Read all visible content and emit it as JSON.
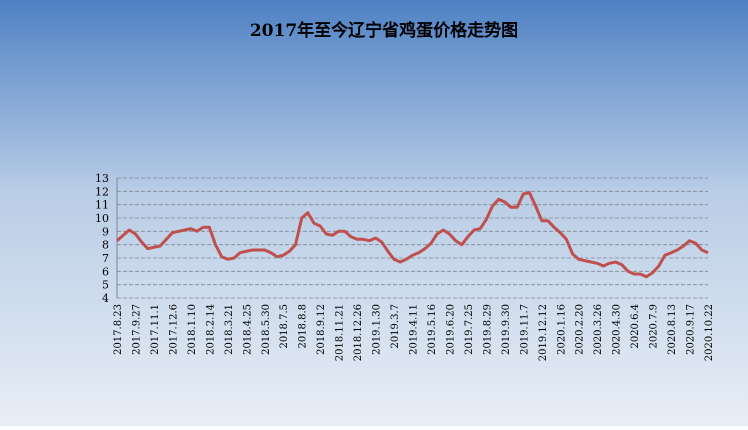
{
  "chart_data": {
    "type": "line",
    "title": "2017年至今辽宁省鸡蛋价格走势图",
    "categories": [
      "2017.8.23",
      null,
      null,
      "2017.9.27",
      null,
      null,
      "2017.11.1",
      null,
      null,
      "2017.12.6",
      null,
      null,
      "2018.1.10",
      null,
      null,
      "2018.2.14",
      null,
      null,
      "2018.3.21",
      null,
      null,
      "2018.4.25",
      null,
      null,
      "2018.5.30",
      null,
      null,
      "2018.7.5",
      null,
      null,
      "2018.8.8",
      null,
      null,
      "2018.9.12",
      null,
      null,
      "2018.11.21",
      null,
      null,
      "2018.12.26",
      null,
      null,
      "2019.1.30",
      null,
      null,
      "2019.3.7",
      null,
      null,
      "2019.4.11",
      null,
      null,
      "2019.5.16",
      null,
      null,
      "2019.6.20",
      null,
      null,
      "2019.7.25",
      null,
      null,
      "2019.8.29",
      null,
      null,
      "2019.9.30",
      null,
      null,
      "2019.11.7",
      null,
      null,
      "2019.12.12",
      null,
      null,
      "2020.1.16",
      null,
      null,
      "2020.2.20",
      null,
      null,
      "2020.3.26",
      null,
      null,
      "2020.4.30",
      null,
      null,
      "2020.6.4",
      null,
      null,
      "2020.7.9",
      null,
      null,
      "2020.8.13",
      null,
      null,
      "2020.9.17",
      null,
      null,
      "2020.10.22"
    ],
    "values": [
      8.3,
      8.7,
      9.1,
      8.8,
      8.2,
      7.7,
      7.8,
      7.9,
      8.4,
      8.9,
      9.0,
      9.1,
      9.2,
      9.0,
      9.3,
      9.3,
      8.0,
      7.1,
      6.9,
      7.0,
      7.4,
      7.5,
      7.6,
      7.6,
      7.6,
      7.4,
      7.1,
      7.2,
      7.5,
      8.0,
      10.0,
      10.4,
      9.6,
      9.4,
      8.8,
      8.7,
      9.0,
      9.0,
      8.6,
      8.4,
      8.4,
      8.3,
      8.5,
      8.2,
      7.5,
      6.9,
      6.7,
      6.9,
      7.2,
      7.4,
      7.7,
      8.1,
      8.8,
      9.1,
      8.8,
      8.3,
      8.0,
      8.6,
      9.1,
      9.2,
      9.9,
      10.9,
      11.4,
      11.2,
      10.8,
      10.8,
      11.8,
      11.9,
      10.9,
      9.8,
      9.8,
      9.3,
      8.9,
      8.4,
      7.3,
      6.9,
      6.8,
      6.7,
      6.6,
      6.4,
      6.6,
      6.7,
      6.5,
      6.0,
      5.8,
      5.8,
      5.6,
      5.9,
      6.4,
      7.2,
      7.4,
      7.6,
      7.9,
      8.3,
      8.1,
      7.6,
      7.4
    ],
    "color": "#c0504d",
    "ylim": [
      4,
      13
    ],
    "yticks": [
      4,
      5,
      6,
      7,
      8,
      9,
      10,
      11,
      12,
      13
    ],
    "grid": true
  }
}
